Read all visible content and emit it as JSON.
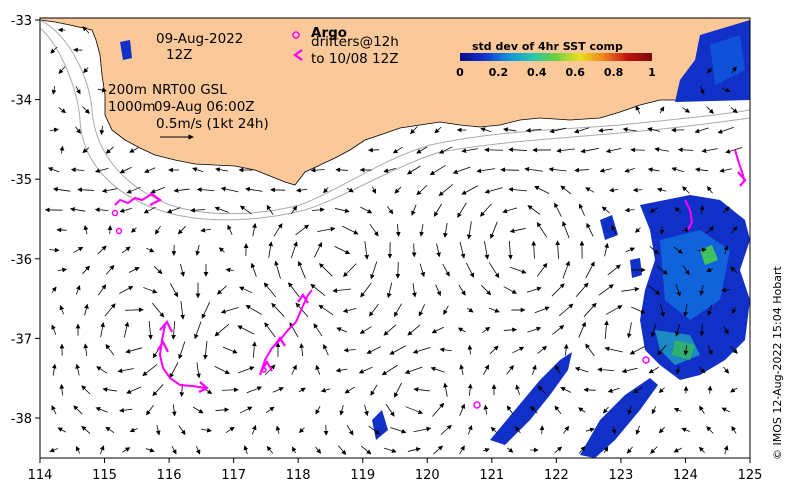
{
  "map": {
    "date": "09-Aug-2022",
    "time": "12Z",
    "argo_label": "Argo",
    "drifters_label_1": "drifters@12h",
    "drifters_label_2": "to 10/08 12Z",
    "depth_label_1": "200m",
    "depth_label_2": "1000m",
    "product_label": "NRT00 GSL",
    "product_time": "09-Aug 06:00Z",
    "scale_label": "0.5m/s (1kt 24h)",
    "copyright": "© IMOS 12-Aug-2022 15:04 Hobart",
    "land_color": "#fbc89a"
  },
  "axes": {
    "x_ticks": [
      "114",
      "115",
      "116",
      "117",
      "118",
      "119",
      "120",
      "121",
      "122",
      "123",
      "124",
      "125"
    ],
    "y_ticks": [
      "-33",
      "-34",
      "-35",
      "-36",
      "-37",
      "-38"
    ]
  },
  "colorbar": {
    "title": "std dev of 4hr SST comp",
    "ticks": [
      "0",
      "0.2",
      "0.4",
      "0.6",
      "0.8",
      "1"
    ],
    "colors": [
      "#0a0a8c",
      "#1030d0",
      "#1090e0",
      "#20c8b0",
      "#70d040",
      "#e8e020",
      "#f08020",
      "#c01010",
      "#7a0a0a"
    ]
  }
}
